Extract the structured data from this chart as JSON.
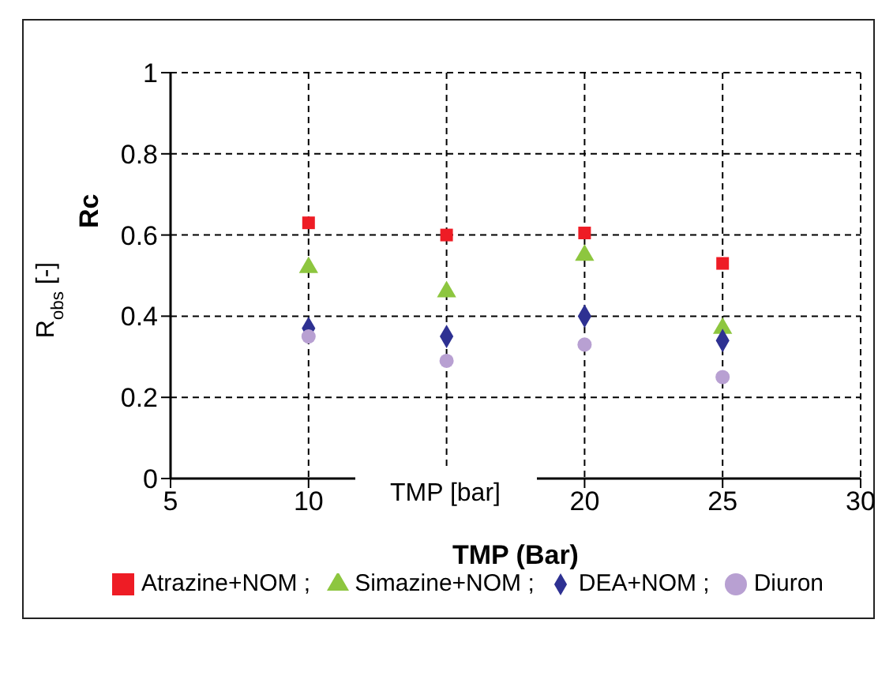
{
  "chart_data": {
    "type": "scatter",
    "xlabel": "TMP (Bar)",
    "ylabel": "Rc",
    "annotations": [
      "R$_{obs}$ [-]",
      "TMP [bar]"
    ],
    "xlim": [
      5,
      30
    ],
    "xticks": [
      5,
      10,
      {
        "value": 15,
        "label": null
      },
      20,
      25,
      30
    ],
    "ylim": [
      0,
      1
    ],
    "yticks": [
      0,
      0.2,
      0.4,
      0.6,
      0.8,
      1
    ],
    "grid": true,
    "legend": "bottom",
    "series": [
      {
        "name": "Atrazine+NOM ;",
        "color": "#ee1c25",
        "marker": "square",
        "x": [
          10,
          15,
          20,
          25
        ],
        "values": [
          0.63,
          0.6,
          0.605,
          0.53
        ]
      },
      {
        "name": "Simazine+NOM ;",
        "color": "#8dc63f",
        "marker": "triangle",
        "x": [
          10,
          15,
          20,
          25
        ],
        "values": [
          0.52,
          0.46,
          0.55,
          0.37
        ]
      },
      {
        "name": "DEA+NOM ;",
        "color": "#2e3192",
        "marker": "diamond",
        "x": [
          10,
          15,
          20,
          25
        ],
        "values": [
          0.37,
          0.35,
          0.4,
          0.34
        ]
      },
      {
        "name": "Diuron",
        "color": "#b8a0d2",
        "marker": "circle",
        "x": [
          10,
          15,
          20,
          25
        ],
        "values": [
          0.35,
          0.29,
          0.33,
          0.25
        ]
      }
    ]
  }
}
